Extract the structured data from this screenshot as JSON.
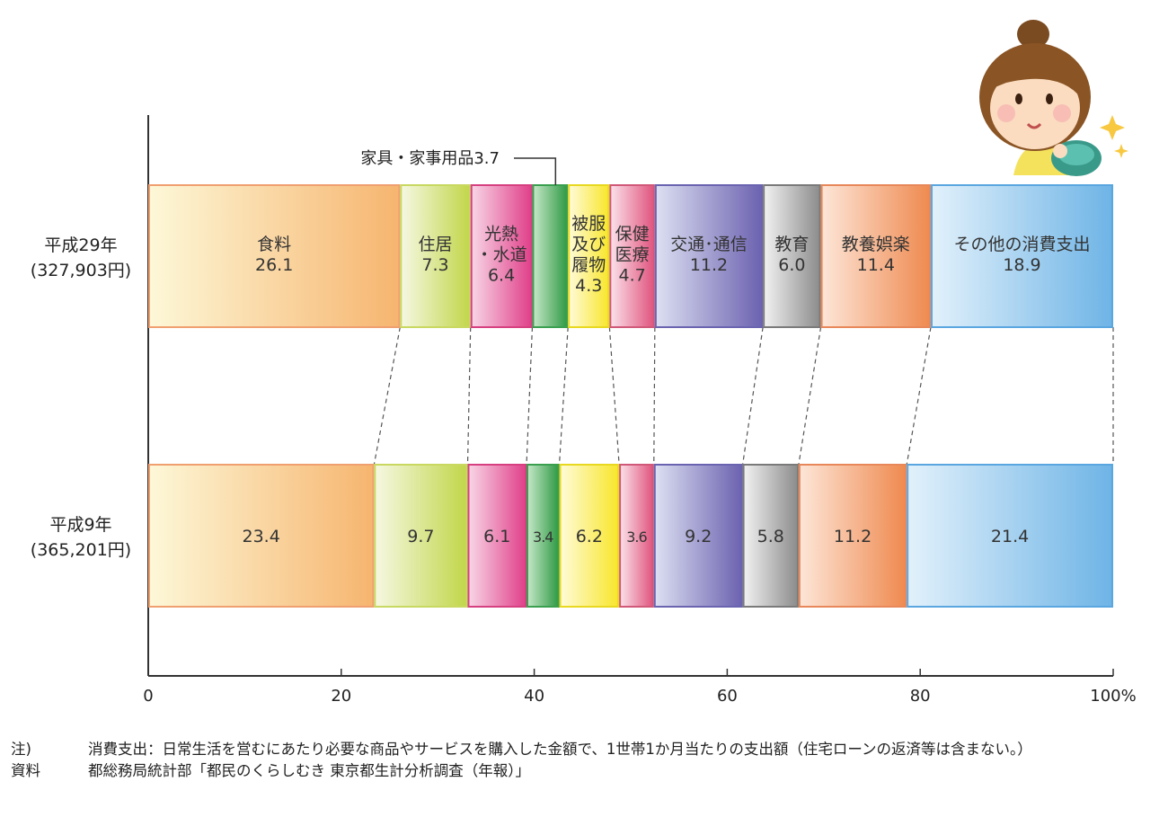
{
  "chart_data": {
    "type": "bar",
    "orientation": "horizontal",
    "stacked": true,
    "rows": [
      {
        "label": "平成29年",
        "sublabel": "(327,903円)",
        "segments": [
          {
            "name": "食料",
            "value": 26.1,
            "label_lines": [
              "食料",
              "26.1"
            ]
          },
          {
            "name": "住居",
            "value": 7.3,
            "label_lines": [
              "住居",
              "7.3"
            ]
          },
          {
            "name": "光熱・水道",
            "value": 6.4,
            "label_lines": [
              "光熱",
              "・水道",
              "6.4"
            ]
          },
          {
            "name": "家具・家事用品",
            "value": 3.7,
            "label_lines": []
          },
          {
            "name": "被服及び履物",
            "value": 4.3,
            "label_lines": [
              "被服",
              "及び",
              "履物",
              "4.3"
            ]
          },
          {
            "name": "保健医療",
            "value": 4.7,
            "label_lines": [
              "保健",
              "医療",
              "4.7"
            ]
          },
          {
            "name": "交通・通信",
            "value": 11.2,
            "label_lines": [
              "交通･通信",
              "11.2"
            ]
          },
          {
            "name": "教育",
            "value": 6.0,
            "label_lines": [
              "教育",
              "6.0"
            ]
          },
          {
            "name": "教養娯楽",
            "value": 11.4,
            "label_lines": [
              "教養娯楽",
              "11.4"
            ]
          },
          {
            "name": "その他の消費支出",
            "value": 18.9,
            "label_lines": [
              "その他の消費支出",
              "18.9"
            ]
          }
        ]
      },
      {
        "label": "平成9年",
        "sublabel": "(365,201円)",
        "segments": [
          {
            "name": "食料",
            "value": 23.4,
            "label_lines": [
              "23.4"
            ]
          },
          {
            "name": "住居",
            "value": 9.7,
            "label_lines": [
              "9.7"
            ]
          },
          {
            "name": "光熱・水道",
            "value": 6.1,
            "label_lines": [
              "6.1"
            ]
          },
          {
            "name": "家具・家事用品",
            "value": 3.4,
            "label_lines": [
              "3.4"
            ]
          },
          {
            "name": "被服及び履物",
            "value": 6.2,
            "label_lines": [
              "6.2"
            ]
          },
          {
            "name": "保健医療",
            "value": 3.6,
            "label_lines": [
              "3.6"
            ]
          },
          {
            "name": "交通・通信",
            "value": 9.2,
            "label_lines": [
              "9.2"
            ]
          },
          {
            "name": "教育",
            "value": 5.8,
            "label_lines": [
              "5.8"
            ]
          },
          {
            "name": "教養娯楽",
            "value": 11.2,
            "label_lines": [
              "11.2"
            ]
          },
          {
            "name": "その他の消費支出",
            "value": 21.4,
            "label_lines": [
              "21.4"
            ]
          }
        ]
      }
    ],
    "callout": {
      "text": "家具・家事用品3.7",
      "segment": "家具・家事用品",
      "row": 0
    },
    "x_ticks": [
      "0",
      "20",
      "40",
      "60",
      "80",
      "100%"
    ],
    "xlim": [
      0,
      100
    ],
    "category_colors": [
      [
        "#fdf8d8",
        "#f6b56f"
      ],
      [
        "#f6f8e2",
        "#c2d64a"
      ],
      [
        "#f8d6e6",
        "#e0408a"
      ],
      [
        "#c6e8c8",
        "#2f9a45"
      ],
      [
        "#fffbd8",
        "#f8e62c"
      ],
      [
        "#fbe2ea",
        "#e0547e"
      ],
      [
        "#dde0f2",
        "#6c62b0"
      ],
      [
        "#f2f2f2",
        "#8c8c8c"
      ],
      [
        "#fde6d8",
        "#ef8a50"
      ],
      [
        "#e2f1fb",
        "#6eb4e6"
      ]
    ],
    "category_borders": [
      "#f0a070",
      "#c8d860",
      "#d64080",
      "#3aa050",
      "#e8d820",
      "#d05878",
      "#6a64b0",
      "#7a7a7a",
      "#e8885a",
      "#5aa6e0"
    ],
    "grid": false,
    "legend": "none"
  },
  "notes": [
    {
      "key": "注)",
      "text": "消費支出：日常生活を営むにあたり必要な商品やサービスを購入した金額で、1世帯1か月当たりの支出額（住宅ローンの返済等は含まない。）"
    },
    {
      "key": "資料",
      "text": "都総務局統計部「都民のくらしむき 東京都生計分析調査（年報）」"
    }
  ],
  "illustration": {
    "icon": "woman-with-purse-illustration"
  }
}
